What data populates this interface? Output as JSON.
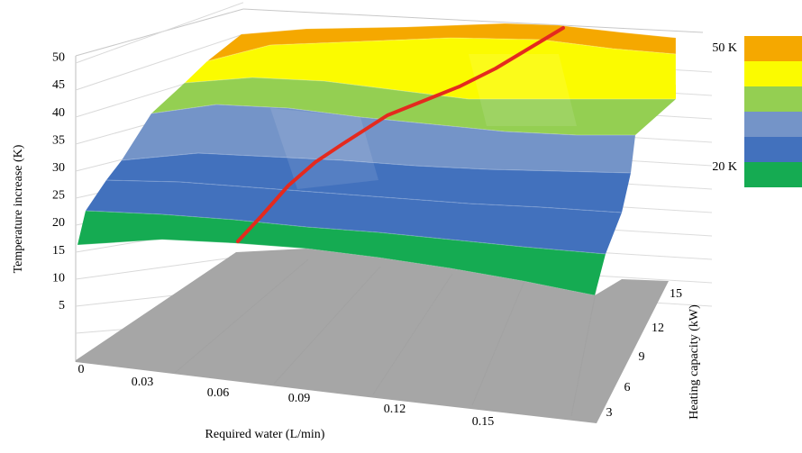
{
  "chart_data": {
    "type": "surface",
    "title": "",
    "xlabel": "Required water (L/min)",
    "ylabel": "Heating capacity (kW)",
    "zlabel": "Temperature increase  (K)",
    "x_ticks": [
      "0",
      "0.03",
      "0.06",
      "0.09",
      "0.12",
      "0.15"
    ],
    "y_ticks": [
      "3",
      "6",
      "9",
      "12",
      "15"
    ],
    "z_ticks": [
      "5",
      "10",
      "15",
      "20",
      "25",
      "30",
      "35",
      "40",
      "45",
      "50"
    ],
    "zlim": [
      0,
      55
    ],
    "legend": {
      "placement": "right",
      "labels": [
        "50 K",
        "20 K"
      ],
      "bands": [
        {
          "color": "#f5a800"
        },
        {
          "color": "#fbfb00"
        },
        {
          "color": "#94cf52"
        },
        {
          "color": "#7494c8"
        },
        {
          "color": "#4271bd"
        },
        {
          "color": "#15ab52"
        }
      ]
    },
    "band_colors": [
      "#15ab52",
      "#4271bd",
      "#7494c8",
      "#94cf52",
      "#fbfb00",
      "#f5a800"
    ],
    "band_edges": [
      15,
      20,
      27,
      34,
      41,
      48,
      55
    ],
    "line_color": "#e42a1e",
    "floor_color": "#a6a6a6"
  }
}
